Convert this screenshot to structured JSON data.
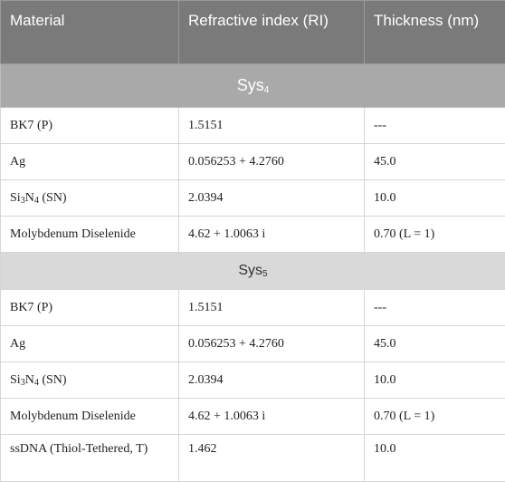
{
  "header": {
    "col1": "Material",
    "col2": "Refractive index (RI)",
    "col3": "Thickness (nm)"
  },
  "sections": [
    {
      "label": "Sys",
      "sub": "4",
      "rows": [
        {
          "mat": "BK7 (P)",
          "ri": "1.5151",
          "th": "---"
        },
        {
          "mat": "Ag",
          "ri": "0.056253 + 4.2760",
          "th": "45.0"
        },
        {
          "mat_pre": "Si",
          "mat_s1": "3",
          "mat_mid": "N",
          "mat_s2": "4",
          "mat_post": " (SN)",
          "ri": "2.0394",
          "th": "10.0"
        },
        {
          "mat": "Molybdenum Diselenide",
          "ri": "4.62 + 1.0063 i",
          "th": "0.70 (L = 1)"
        }
      ]
    },
    {
      "label": "Sys",
      "sub": "5",
      "rows": [
        {
          "mat": "BK7 (P)",
          "ri": "1.5151",
          "th": "---"
        },
        {
          "mat": "Ag",
          "ri": "0.056253 + 4.2760",
          "th": "45.0"
        },
        {
          "mat_pre": "Si",
          "mat_s1": "3",
          "mat_mid": "N",
          "mat_s2": "4",
          "mat_post": " (SN)",
          "ri": "2.0394",
          "th": "10.0"
        },
        {
          "mat": "Molybdenum Diselenide",
          "ri": "4.62 + 1.0063 i",
          "th": "0.70 (L = 1)"
        },
        {
          "mat": "ssDNA (Thiol-Tethered, T)",
          "ri": "1.462",
          "th": "10.0"
        }
      ]
    }
  ]
}
